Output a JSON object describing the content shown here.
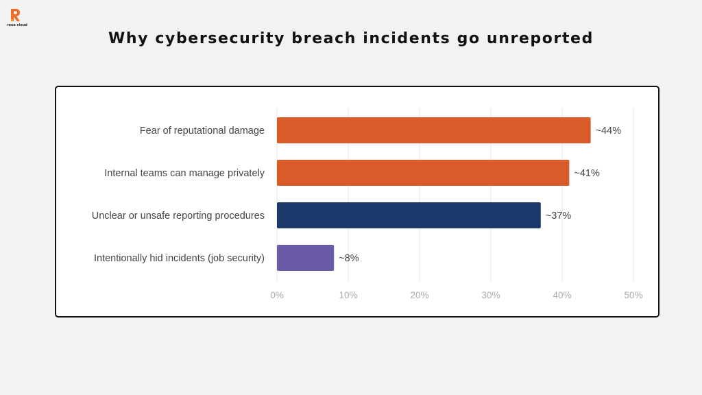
{
  "brand": {
    "logo_text": "reea cloud",
    "logo_colors": [
      "#f26b21",
      "#f9a01b"
    ]
  },
  "page_title": "Why cybersecurity breach incidents go unreported",
  "chart_data": {
    "type": "bar",
    "orientation": "horizontal",
    "title": "",
    "xlabel": "",
    "ylabel": "",
    "categories": [
      "Fear of reputational damage",
      "Internal teams can manage privately",
      "Unclear or unsafe reporting procedures",
      "Intentionally hid incidents (job security)"
    ],
    "values": [
      44,
      41,
      37,
      8
    ],
    "value_labels": [
      "~44%",
      "~41%",
      "~37%",
      "~8%"
    ],
    "bar_colors": [
      "#d95b2a",
      "#d95b2a",
      "#1b3a6b",
      "#6a5aa8"
    ],
    "xlim": [
      0,
      50
    ],
    "xticks": [
      0,
      10,
      20,
      30,
      40,
      50
    ],
    "xtick_labels": [
      "0%",
      "10%",
      "20%",
      "30%",
      "40%",
      "50%"
    ],
    "grid": "vertical",
    "legend": "none"
  }
}
